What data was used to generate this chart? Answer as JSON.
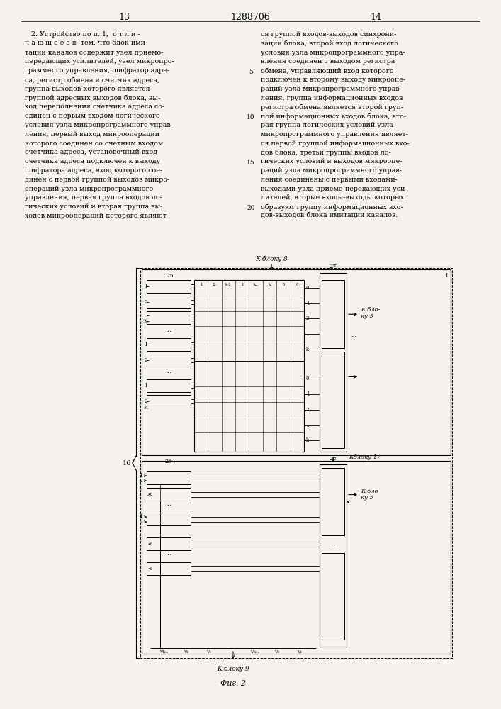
{
  "page_numbers": [
    "13",
    "1288706",
    "14"
  ],
  "col1_text": [
    "   2. Устройство по п. 1,  о т л и -",
    "ч а ю щ е е с я  тем, что блок ими-",
    "тации каналов содержит узел приемо-",
    "передающих усилителей, узел микропро-",
    "граммного управления, шифратор адре-",
    "са, регистр обмена и счетчик адреса,",
    "группа выходов которого является",
    "группой адресных выходов блока, вы-",
    "ход переполнения счетчика адреса со-",
    "единен с первым входом логического",
    "условия узла микропрограммного управ-",
    "ления, первый выход микрооперации",
    "которого соединен со счетным входом",
    "счетчика адреса, установочный вход",
    "счетчика адреса подключен к выходу",
    "шифратора адреса, вход которого сое-",
    "динен с первой группой выходов микро-",
    "операций узла микропрограммного",
    "управления, первая группа входов ло-",
    "гических условий и вторая группа вы-",
    "ходов микроопераций которого являют-"
  ],
  "col2_text": [
    "ся группой входов-выходов синхрони-",
    "зации блока, второй вход логического",
    "условия узла микропрограммного упра-",
    "вления соединен с выходом регистра",
    "обмена, управляющий вход которого",
    "подключен к второму выходу микроопе-",
    "раций узла микропрограммного управ-",
    "ления, группа информационных входов",
    "регистра обмена является второй груп-",
    "пой информационных входов блока, вто-",
    "рая группа логических условий узла",
    "микропрограммного управления являет-",
    "ся первой группой информационных вхо-",
    "дов блока, третьи группы входов ло-",
    "гических условий и выходов микроопе-",
    "раций узла микропрограммного управ-",
    "ления соединены с первыми входами-",
    "выходами узла приемо-передающих уси-",
    "лителей, вторые входы-выходы которых",
    "образуют группу информационных вхо-",
    "дов-выходов блока имитации каналов."
  ],
  "fig_label": "Фиг. 2",
  "k_blok8": "К блоку 8",
  "k_blok9": "К блоку 9",
  "k_blok5_top": "К бло-\nку 5",
  "k_blok5_bot": "К бло-\nку 5",
  "k_blok17": "Кблоку 17",
  "label_25": "25",
  "label_26": "26",
  "label_27": "27",
  "label_28": "28",
  "label_16": "16",
  "bg_color": "#f5f2ed"
}
